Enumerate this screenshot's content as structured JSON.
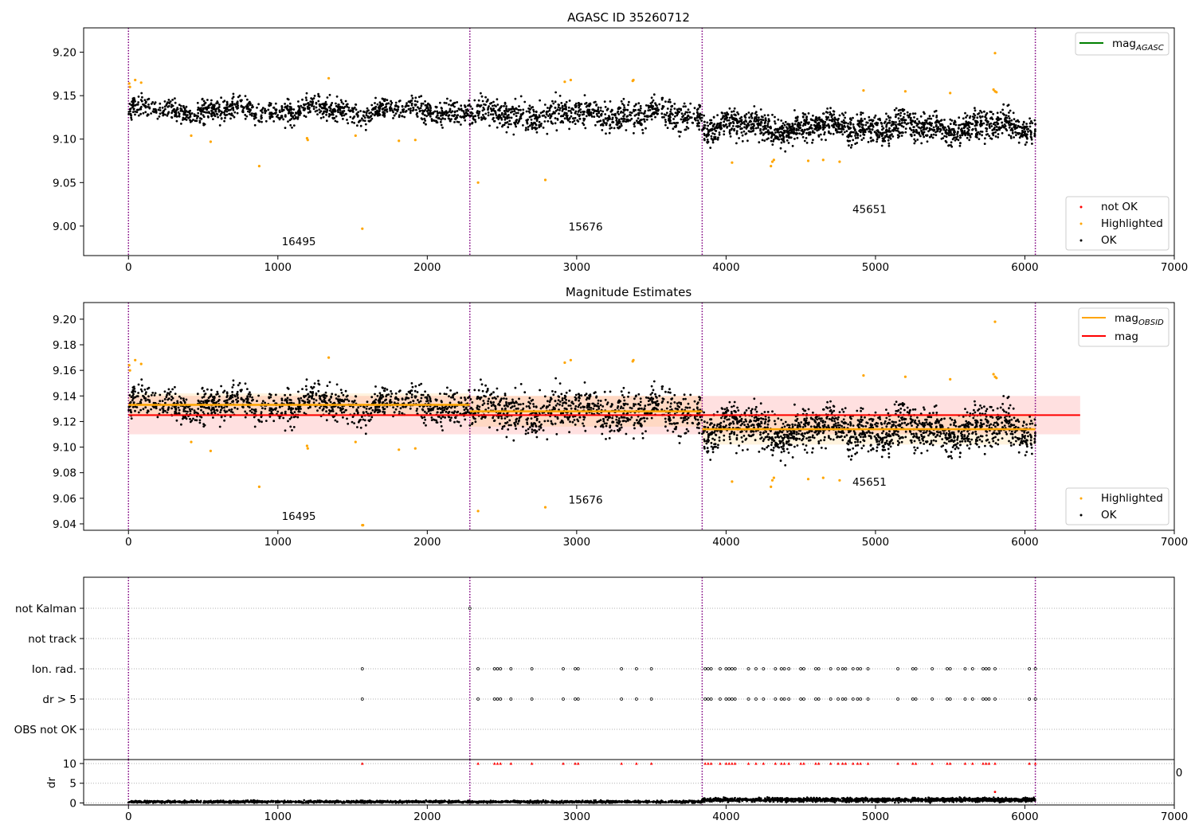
{
  "chart_data": [
    {
      "id": "agasc",
      "type": "scatter",
      "title": "AGASC ID 35260712",
      "xlim": [
        -300,
        7000
      ],
      "ylim": [
        8.966,
        9.228
      ],
      "xticks": [
        0,
        1000,
        2000,
        3000,
        4000,
        5000,
        6000,
        7000
      ],
      "yticks": [
        9.0,
        9.05,
        9.1,
        9.15,
        9.2
      ],
      "ytick_labels": [
        "9.00",
        "9.05",
        "9.10",
        "9.15",
        "9.20"
      ],
      "obsid_boundaries": [
        0,
        2285,
        3840,
        6070
      ],
      "obsid_labels": [
        {
          "text": "16495",
          "x": 1140,
          "y": 8.978
        },
        {
          "text": "15676",
          "x": 3060,
          "y": 8.995
        },
        {
          "text": "45651",
          "x": 4960,
          "y": 9.015
        }
      ],
      "segments": [
        {
          "start": 0,
          "end": 2285,
          "mean": 9.133,
          "spread": 0.009,
          "count": 1100
        },
        {
          "start": 2285,
          "end": 3840,
          "mean": 9.128,
          "spread": 0.011,
          "count": 800
        },
        {
          "start": 3840,
          "end": 6070,
          "mean": 9.114,
          "spread": 0.011,
          "count": 1500
        }
      ],
      "highlighted": [
        [
          5,
          9.164
        ],
        [
          10,
          9.16
        ],
        [
          45,
          9.168
        ],
        [
          85,
          9.165
        ],
        [
          420,
          9.104
        ],
        [
          550,
          9.097
        ],
        [
          875,
          9.069
        ],
        [
          1195,
          9.101
        ],
        [
          1200,
          9.099
        ],
        [
          1340,
          9.17
        ],
        [
          1520,
          9.104
        ],
        [
          1565,
          8.997
        ],
        [
          1810,
          9.098
        ],
        [
          1920,
          9.099
        ],
        [
          2340,
          9.05
        ],
        [
          2790,
          9.053
        ],
        [
          2920,
          9.166
        ],
        [
          2960,
          9.168
        ],
        [
          3375,
          9.167
        ],
        [
          3380,
          9.168
        ],
        [
          4040,
          9.073
        ],
        [
          4300,
          9.069
        ],
        [
          4310,
          9.074
        ],
        [
          4320,
          9.076
        ],
        [
          4550,
          9.075
        ],
        [
          4650,
          9.076
        ],
        [
          4760,
          9.074
        ],
        [
          4920,
          9.156
        ],
        [
          5200,
          9.155
        ],
        [
          5500,
          9.153
        ],
        [
          5790,
          9.157
        ],
        [
          5800,
          9.155
        ],
        [
          5800,
          9.199
        ],
        [
          5810,
          9.154
        ]
      ],
      "legend_lines": [
        {
          "label": "mag",
          "sub": "AGASC",
          "color": "#008000"
        }
      ],
      "legend_points": [
        {
          "label": "not OK",
          "color": "#ff0000"
        },
        {
          "label": "Highlighted",
          "color": "#ffa500"
        },
        {
          "label": "OK",
          "color": "#000000"
        }
      ]
    },
    {
      "id": "estimates",
      "type": "scatter",
      "title": "Magnitude Estimates",
      "xlim": [
        -300,
        7000
      ],
      "ylim": [
        9.035,
        9.213
      ],
      "xticks": [
        0,
        1000,
        2000,
        3000,
        4000,
        5000,
        6000,
        7000
      ],
      "yticks": [
        9.04,
        9.06,
        9.08,
        9.1,
        9.12,
        9.14,
        9.16,
        9.18,
        9.2
      ],
      "ytick_labels": [
        "9.04",
        "9.06",
        "9.08",
        "9.10",
        "9.12",
        "9.14",
        "9.16",
        "9.18",
        "9.20"
      ],
      "obsid_boundaries": [
        0,
        2285,
        3840,
        6070
      ],
      "obsid_labels": [
        {
          "text": "16495",
          "x": 1140,
          "y": 9.043
        },
        {
          "text": "15676",
          "x": 3060,
          "y": 9.056
        },
        {
          "text": "45651",
          "x": 4960,
          "y": 9.07
        }
      ],
      "mag": {
        "value": 9.125,
        "band": [
          9.11,
          9.14
        ],
        "xrange": [
          0,
          6370
        ]
      },
      "mag_obsid": [
        {
          "start": 0,
          "end": 2285,
          "value": 9.133,
          "band": [
            9.124,
            9.142
          ]
        },
        {
          "start": 2285,
          "end": 3840,
          "value": 9.128,
          "band": [
            9.116,
            9.14
          ]
        },
        {
          "start": 3840,
          "end": 6070,
          "value": 9.114,
          "band": [
            9.102,
            9.126
          ]
        }
      ],
      "highlighted": [
        [
          5,
          9.164
        ],
        [
          10,
          9.16
        ],
        [
          45,
          9.168
        ],
        [
          85,
          9.165
        ],
        [
          420,
          9.104
        ],
        [
          550,
          9.097
        ],
        [
          875,
          9.069
        ],
        [
          1195,
          9.101
        ],
        [
          1200,
          9.099
        ],
        [
          1340,
          9.17
        ],
        [
          1520,
          9.104
        ],
        [
          1565,
          9.039
        ],
        [
          1570,
          9.039
        ],
        [
          1810,
          9.098
        ],
        [
          1920,
          9.099
        ],
        [
          2340,
          9.05
        ],
        [
          2790,
          9.053
        ],
        [
          2920,
          9.166
        ],
        [
          2960,
          9.168
        ],
        [
          3375,
          9.167
        ],
        [
          3380,
          9.168
        ],
        [
          4040,
          9.073
        ],
        [
          4300,
          9.069
        ],
        [
          4310,
          9.074
        ],
        [
          4320,
          9.076
        ],
        [
          4550,
          9.075
        ],
        [
          4650,
          9.076
        ],
        [
          4760,
          9.074
        ],
        [
          4920,
          9.156
        ],
        [
          5200,
          9.155
        ],
        [
          5500,
          9.153
        ],
        [
          5790,
          9.157
        ],
        [
          5800,
          9.155
        ],
        [
          5800,
          9.198
        ],
        [
          5810,
          9.154
        ]
      ],
      "legend_lines": [
        {
          "label": "mag",
          "sub": "OBSID",
          "color": "#ffa500"
        },
        {
          "label": "mag",
          "sub": "",
          "color": "#ff0000"
        }
      ],
      "legend_points": [
        {
          "label": "Highlighted",
          "color": "#ffa500"
        },
        {
          "label": "OK",
          "color": "#000000"
        }
      ]
    },
    {
      "id": "flags",
      "type": "scatter",
      "xlim": [
        -300,
        7000
      ],
      "categories": [
        "not Kalman",
        "not track",
        "Ion. rad.",
        "dr > 5",
        "OBS not OK"
      ],
      "obsid_boundaries": [
        0,
        2285,
        3840,
        6070
      ],
      "flag_times": [
        1565,
        2340,
        2450,
        2470,
        2490,
        2560,
        2700,
        2910,
        2990,
        3010,
        3300,
        3400,
        3500,
        3860,
        3880,
        3900,
        3960,
        4000,
        4020,
        4040,
        4060,
        4150,
        4200,
        4250,
        4330,
        4370,
        4390,
        4420,
        4500,
        4520,
        4600,
        4620,
        4700,
        4750,
        4780,
        4800,
        4850,
        4880,
        4900,
        4950,
        5150,
        5250,
        5270,
        5380,
        5480,
        5500,
        5600,
        5650,
        5720,
        5740,
        5760,
        5800,
        6030,
        6070
      ],
      "not_kalman_times": [
        2285
      ]
    },
    {
      "id": "dr",
      "type": "scatter",
      "ylabel": "dr",
      "xlim": [
        -300,
        7000
      ],
      "ylim": [
        -0.5,
        11
      ],
      "xticks": [
        0,
        1000,
        2000,
        3000,
        4000,
        5000,
        6000,
        7000
      ],
      "yticks": [
        0,
        5,
        10
      ],
      "ytick_labels": [
        "0",
        "5",
        "10"
      ],
      "obsid_boundaries": [
        0,
        2285,
        3840,
        6070
      ],
      "clipped_value": 10,
      "outlier": [
        5800,
        2.8
      ],
      "segments": [
        {
          "start": 0,
          "end": 3840,
          "level": 0.3,
          "spread": 0.2,
          "count": 1800
        },
        {
          "start": 3840,
          "end": 6070,
          "level": 0.8,
          "spread": 0.35,
          "count": 1500
        }
      ],
      "stray_tick_label": "0"
    }
  ]
}
